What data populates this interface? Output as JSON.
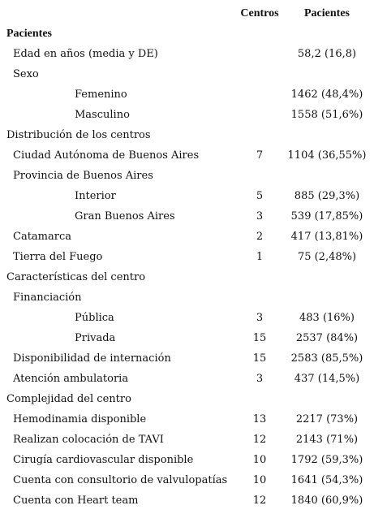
{
  "table": {
    "header": [
      "Centros",
      "Pacientes"
    ],
    "rows": [
      [
        "Pacientes",
        null,
        null
      ],
      [
        "Edad en años (media y DE)",
        null,
        "58,2 (16,8)"
      ],
      [
        "Sexo",
        null,
        null
      ],
      [
        "Femenino",
        null,
        "1462 (48,4%)"
      ],
      [
        "Masculino",
        null,
        "1558 (51,6%)"
      ],
      [
        "Distribución de los centros",
        null,
        null
      ],
      [
        "Ciudad Autónoma de Buenos Aires",
        7,
        "1104 (36,55%)"
      ],
      [
        "Provincia de Buenos Aires",
        null,
        null
      ],
      [
        "Interior",
        5,
        "885 (29,3%)"
      ],
      [
        "Gran Buenos Aires",
        3,
        "539 (17,85%)"
      ],
      [
        "Catamarca",
        2,
        "417 (13,81%)"
      ],
      [
        "Tierra del Fuego",
        1,
        "75 (2,48%)"
      ],
      [
        "Características del centro",
        null,
        null
      ],
      [
        "Financiación",
        null,
        null
      ],
      [
        "Pública",
        3,
        "483 (16%)"
      ],
      [
        "Privada",
        15,
        "2537 (84%)"
      ],
      [
        "Disponibilidad de internación",
        15,
        "2583 (85,5%)"
      ],
      [
        "Atención ambulatoria",
        3,
        "437 (14,5%)"
      ],
      [
        "Complejidad del centro",
        null,
        null
      ],
      [
        "Hemodinamia disponible",
        13,
        "2217 (73%)"
      ],
      [
        "Realizan colocación de TAVI",
        12,
        "2143 (71%)"
      ],
      [
        "Cirugía cardiovascular disponible",
        10,
        "1792 (59,3%)"
      ],
      [
        "Cuenta con consultorio de valvulopatías",
        10,
        "1641 (54,3%)"
      ],
      [
        "Cuenta con Heart team",
        12,
        "1840 (60,9%)"
      ]
    ]
  }
}
